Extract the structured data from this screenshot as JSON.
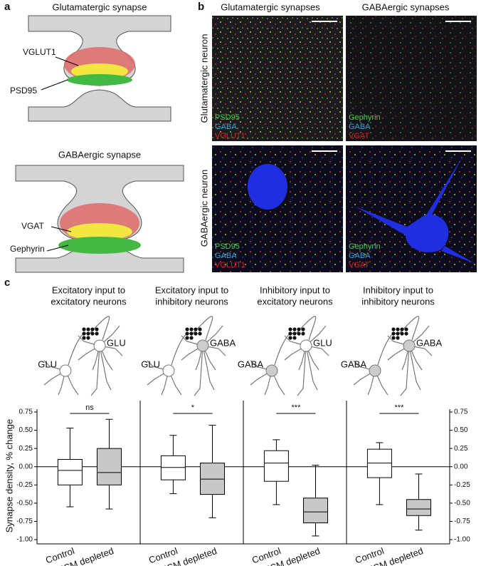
{
  "panel_a": {
    "label": "a",
    "glutamatergic": {
      "title": "Glutamatergic synapse",
      "vesicle_label": "VGLUT1",
      "scaffold_label": "PSD95"
    },
    "gabaergic": {
      "title": "GABAergic synapse",
      "vesicle_label": "VGAT",
      "scaffold_label": "Gephyrin"
    }
  },
  "panel_b": {
    "label": "b",
    "columns": [
      "Glutamatergic synapses",
      "GABAergic synapses"
    ],
    "rows": [
      "Glutamatergic neuron",
      "GABAergic neuron"
    ],
    "legends": [
      [
        "PSD95",
        "GABA",
        "VGLUT1"
      ],
      [
        "Gephyrin",
        "GABA",
        "VGAT"
      ],
      [
        "PSD95",
        "GABA",
        "VGLUT1"
      ],
      [
        "Gephyrin",
        "GABA",
        "VGAT"
      ]
    ]
  },
  "panel_c": {
    "label": "c",
    "groups": [
      {
        "title": [
          "Excitatory input to",
          "excitatory neurons"
        ],
        "cells": [
          {
            "label": "GLU",
            "color": "#ffffff"
          },
          {
            "label": "GLU",
            "color": "#ffffff"
          }
        ]
      },
      {
        "title": [
          "Excitatory input to",
          "inhibitory neurons"
        ],
        "cells": [
          {
            "label": "GLU",
            "color": "#ffffff"
          },
          {
            "label": "GABA",
            "color": "#cccccc"
          }
        ]
      },
      {
        "title": [
          "Inhibitory input to",
          "excitatory neurons"
        ],
        "cells": [
          {
            "label": "GABA",
            "color": "#cccccc"
          },
          {
            "label": "GLU",
            "color": "#ffffff"
          }
        ]
      },
      {
        "title": [
          "Inhibitory input to",
          "inhibitory neurons"
        ],
        "cells": [
          {
            "label": "GABA",
            "color": "#cccccc"
          },
          {
            "label": "GABA",
            "color": "#cccccc"
          }
        ]
      }
    ]
  },
  "chart_data": {
    "type": "box",
    "ylabel": "Synapse density, % change",
    "categories": [
      "Control",
      "ECM depleted"
    ],
    "colors": [
      "#ffffff",
      "#c8c8c8"
    ],
    "ylim": [
      -1,
      0.75
    ],
    "yticks": [
      0.75,
      {
        "value": 0.5,
        "label": "0.50"
      },
      0.25,
      {
        "value": 0,
        "label": "0.00"
      },
      -0.25,
      {
        "value": -0.5,
        "label": "-0.50"
      },
      -0.75,
      {
        "value": -1,
        "label": "-1.00"
      }
    ],
    "panels": [
      {
        "significance": "ns",
        "boxes": [
          {
            "whislo": -0.55,
            "q1": -0.25,
            "med": -0.05,
            "q3": 0.1,
            "whishi": 0.53
          },
          {
            "whislo": -0.58,
            "q1": -0.25,
            "med": -0.08,
            "q3": 0.25,
            "whishi": 0.65
          }
        ]
      },
      {
        "significance": "*",
        "boxes": [
          {
            "whislo": -0.37,
            "q1": -0.18,
            "med": -0.01,
            "q3": 0.15,
            "whishi": 0.43
          },
          {
            "whislo": -0.7,
            "q1": -0.38,
            "med": -0.17,
            "q3": 0.05,
            "whishi": 0.57
          }
        ]
      },
      {
        "significance": "***",
        "boxes": [
          {
            "whislo": -0.52,
            "q1": -0.2,
            "med": 0.05,
            "q3": 0.22,
            "whishi": 0.37
          },
          {
            "whislo": -0.95,
            "q1": -0.77,
            "med": -0.62,
            "q3": -0.43,
            "whishi": 0.02
          }
        ]
      },
      {
        "significance": "***",
        "boxes": [
          {
            "whislo": -0.52,
            "q1": -0.15,
            "med": 0.05,
            "q3": 0.24,
            "whishi": 0.33
          },
          {
            "whislo": -0.87,
            "q1": -0.67,
            "med": -0.58,
            "q3": -0.45,
            "whishi": -0.1
          }
        ]
      }
    ]
  }
}
